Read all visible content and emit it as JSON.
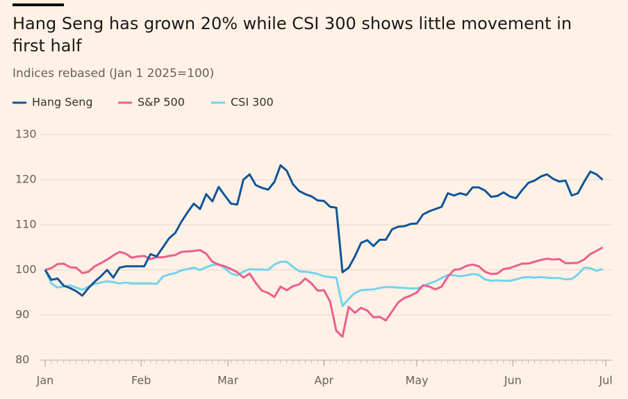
{
  "chart_data": {
    "type": "line",
    "title": "Hang Seng has grown 20% while CSI 300 shows little movement in first half",
    "subtitle": "Indices rebased (Jan 1 2025=100)",
    "x": [
      0,
      2,
      4,
      6,
      8,
      10,
      12,
      14,
      16,
      18,
      20,
      22,
      24,
      26,
      28,
      30,
      32,
      34,
      36,
      38,
      40,
      42,
      44,
      46,
      48,
      50,
      52,
      54,
      56,
      58,
      60,
      62,
      64,
      66,
      68,
      70,
      72,
      74,
      76,
      78,
      80,
      82,
      84,
      86,
      88,
      90,
      92,
      94,
      96,
      98,
      100,
      102,
      104,
      106,
      108,
      110,
      112,
      114,
      116,
      118,
      120,
      122,
      124,
      126,
      128,
      130,
      132,
      134,
      136,
      138,
      140,
      142,
      144,
      146,
      148,
      150,
      152,
      154,
      156,
      158,
      160,
      162,
      164,
      166,
      168,
      170,
      172,
      174,
      176,
      178,
      180
    ],
    "series": [
      {
        "name": "Hang Seng",
        "color": "#0f5499",
        "values": [
          100,
          97.8,
          98.1,
          96.5,
          96,
          95.3,
          94.3,
          96,
          97.4,
          98.6,
          100,
          98.3,
          100.5,
          100.8,
          100.8,
          100.8,
          100.8,
          103.5,
          103,
          105,
          107,
          108.2,
          110.7,
          112.8,
          114.7,
          113.5,
          116.8,
          115.2,
          118.4,
          116.5,
          114.7,
          114.5,
          120,
          121.2,
          118.8,
          118.2,
          117.8,
          119.5,
          123.2,
          122,
          119,
          117.5,
          116.8,
          116.3,
          115.4,
          115.3,
          114,
          113.8,
          99.5,
          100.5,
          103,
          106,
          106.6,
          105.3,
          106.7,
          106.7,
          109,
          109.6,
          109.7,
          110.2,
          110.3,
          112.3,
          113,
          113.5,
          114,
          117,
          116.5,
          117,
          116.6,
          118.3,
          118.3,
          117.6,
          116.2,
          116.4,
          117.2,
          116.3,
          115.9,
          117.7,
          119.3,
          119.8,
          120.7,
          121.2,
          120.2,
          119.6,
          119.8,
          116.5,
          117,
          119.5,
          121.8,
          121.2,
          120
        ]
      },
      {
        "name": "S&P 500",
        "color": "#eb5e8d",
        "values": [
          100,
          100.4,
          101.3,
          101.4,
          100.6,
          100.5,
          99.3,
          99.6,
          100.8,
          101.5,
          102.3,
          103.2,
          104,
          103.6,
          102.7,
          103,
          103.1,
          102.4,
          102.8,
          102.8,
          103.1,
          103.3,
          104,
          104.1,
          104.2,
          104.4,
          103.6,
          101.8,
          101.2,
          100.8,
          100.2,
          99.5,
          98.3,
          99.2,
          97.1,
          95.4,
          94.9,
          94,
          96.3,
          95.5,
          96.4,
          96.8,
          98.1,
          97,
          95.4,
          95.5,
          93,
          86.5,
          85.2,
          91.8,
          90.5,
          91.6,
          91,
          89.5,
          89.6,
          88.8,
          90.8,
          92.8,
          93.8,
          94.3,
          95,
          96.6,
          96.3,
          95.7,
          96.3,
          98.5,
          100,
          100.2,
          100.9,
          101.2,
          100.8,
          99.6,
          99.1,
          99.2,
          100.2,
          100.4,
          100.9,
          101.4,
          101.4,
          101.8,
          102.2,
          102.5,
          102.3,
          102.4,
          101.5,
          101.5,
          101.6,
          102.3,
          103.5,
          104.2,
          105
        ]
      },
      {
        "name": "CSI 300",
        "color": "#72d4ef",
        "values": [
          100,
          97,
          96.1,
          96.3,
          96.6,
          96.1,
          95.6,
          96.3,
          96.9,
          97.2,
          97.5,
          97.3,
          97,
          97.2,
          97,
          97,
          97,
          97,
          96.9,
          98.5,
          99,
          99.3,
          99.9,
          100.2,
          100.5,
          100,
          100.6,
          101.1,
          101.2,
          100.4,
          99.2,
          98.8,
          99.6,
          100.2,
          100.1,
          100.1,
          100,
          101.2,
          101.8,
          101.8,
          100.7,
          99.7,
          99.6,
          99.4,
          99.1,
          98.6,
          98.4,
          98.3,
          92,
          93.6,
          94.9,
          95.5,
          95.6,
          95.7,
          96,
          96.2,
          96.2,
          96.1,
          96,
          95.9,
          95.9,
          96.4,
          97,
          97.5,
          98.2,
          98.9,
          98.8,
          98.6,
          98.8,
          99.1,
          98.9,
          97.9,
          97.6,
          97.7,
          97.6,
          97.6,
          97.9,
          98.3,
          98.4,
          98.3,
          98.4,
          98.3,
          98.2,
          98.2,
          97.9,
          98,
          99,
          100.5,
          100.4,
          99.8,
          100.2
        ]
      }
    ],
    "xlim": [
      0,
      181
    ],
    "xticks": [
      {
        "value": 0,
        "label": "Jan"
      },
      {
        "value": 31,
        "label": "Feb"
      },
      {
        "value": 59,
        "label": "Mar"
      },
      {
        "value": 90,
        "label": "Apr"
      },
      {
        "value": 120,
        "label": "May"
      },
      {
        "value": 151,
        "label": "Jun"
      },
      {
        "value": 181,
        "label": "Jul"
      }
    ],
    "ylim": [
      80,
      130
    ],
    "yticks": [
      80,
      90,
      100,
      110,
      120,
      130
    ],
    "grid": true,
    "legend": "top-left"
  }
}
